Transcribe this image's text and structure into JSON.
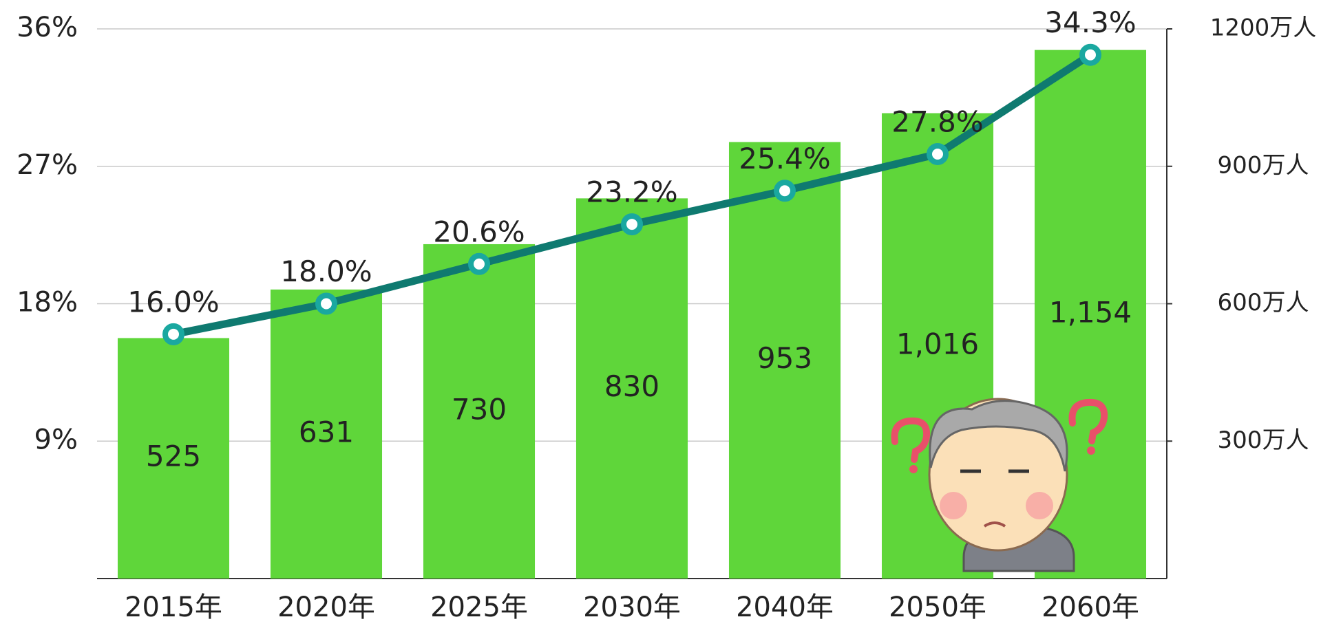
{
  "chart_data": {
    "type": "bar_line",
    "categories": [
      "2015年",
      "2020年",
      "2025年",
      "2030年",
      "2040年",
      "2050年",
      "2060年"
    ],
    "series": [
      {
        "type": "bar",
        "axis": "y2",
        "color": "#5fd63a",
        "values": [
          525,
          631,
          730,
          830,
          953,
          1016,
          1154
        ],
        "value_labels": [
          "525",
          "631",
          "730",
          "830",
          "953",
          "1,016",
          "1,154"
        ]
      },
      {
        "type": "line",
        "axis": "y",
        "color": "#0f7a70",
        "marker_color": "#1aa8a0",
        "values": [
          16.0,
          18.0,
          20.6,
          23.2,
          25.4,
          27.8,
          34.3
        ],
        "value_labels": [
          "16.0%",
          "18.0%",
          "20.6%",
          "23.2%",
          "25.4%",
          "27.8%",
          "34.3%"
        ]
      }
    ],
    "ylim": [
      0,
      36
    ],
    "yticks": [
      {
        "value": 9,
        "label": "9%"
      },
      {
        "value": 18,
        "label": "18%"
      },
      {
        "value": 27,
        "label": "27%"
      },
      {
        "value": 36,
        "label": "36%"
      }
    ],
    "y2lim": [
      0,
      1200
    ],
    "y2ticks": [
      {
        "value": 300,
        "label": "300万人"
      },
      {
        "value": 600,
        "label": "600万人"
      },
      {
        "value": 900,
        "label": "900万人"
      },
      {
        "value": 1200,
        "label": "1200万人"
      }
    ],
    "grid": true
  }
}
